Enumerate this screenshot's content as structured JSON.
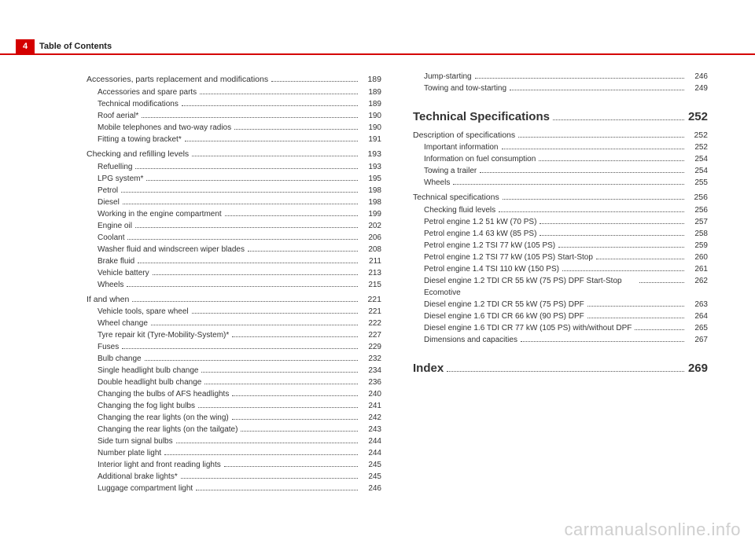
{
  "header": {
    "page_number": "4",
    "section": "Table of Contents"
  },
  "watermark": "carmanualsonline.info",
  "columns": [
    [
      {
        "type": "group",
        "label": "Accessories, parts replacement and modifications",
        "page": "189",
        "wrap": true
      },
      {
        "type": "sub",
        "label": "Accessories and spare parts",
        "page": "189"
      },
      {
        "type": "sub",
        "label": "Technical modifications",
        "page": "189"
      },
      {
        "type": "sub",
        "label": "Roof aerial*",
        "page": "190"
      },
      {
        "type": "sub",
        "label": "Mobile telephones and two-way radios",
        "page": "190"
      },
      {
        "type": "sub",
        "label": "Fitting a towing bracket*",
        "page": "191"
      },
      {
        "type": "group",
        "label": "Checking and refilling levels",
        "page": "193"
      },
      {
        "type": "sub",
        "label": "Refuelling",
        "page": "193"
      },
      {
        "type": "sub",
        "label": "LPG system*",
        "page": "195"
      },
      {
        "type": "sub",
        "label": "Petrol",
        "page": "198"
      },
      {
        "type": "sub",
        "label": "Diesel",
        "page": "198"
      },
      {
        "type": "sub",
        "label": "Working in the engine compartment",
        "page": "199"
      },
      {
        "type": "sub",
        "label": "Engine oil",
        "page": "202"
      },
      {
        "type": "sub",
        "label": "Coolant",
        "page": "206"
      },
      {
        "type": "sub",
        "label": "Washer fluid and windscreen wiper blades",
        "page": "208"
      },
      {
        "type": "sub",
        "label": "Brake fluid",
        "page": "211"
      },
      {
        "type": "sub",
        "label": "Vehicle battery",
        "page": "213"
      },
      {
        "type": "sub",
        "label": "Wheels",
        "page": "215"
      },
      {
        "type": "group",
        "label": "If and when",
        "page": "221"
      },
      {
        "type": "sub",
        "label": "Vehicle tools, spare wheel",
        "page": "221"
      },
      {
        "type": "sub",
        "label": "Wheel change",
        "page": "222"
      },
      {
        "type": "sub",
        "label": "Tyre repair kit (Tyre-Mobility-System)*",
        "page": "227"
      },
      {
        "type": "sub",
        "label": "Fuses",
        "page": "229"
      },
      {
        "type": "sub",
        "label": "Bulb change",
        "page": "232"
      },
      {
        "type": "sub",
        "label": "Single headlight bulb change",
        "page": "234"
      },
      {
        "type": "sub",
        "label": "Double headlight bulb change",
        "page": "236"
      },
      {
        "type": "sub",
        "label": "Changing the bulbs of AFS headlights",
        "page": "240"
      },
      {
        "type": "sub",
        "label": "Changing the fog light bulbs",
        "page": "241"
      },
      {
        "type": "sub",
        "label": "Changing the rear lights (on the wing)",
        "page": "242"
      },
      {
        "type": "sub",
        "label": "Changing the rear lights (on the tailgate)",
        "page": "243"
      },
      {
        "type": "sub",
        "label": "Side turn signal bulbs",
        "page": "244"
      },
      {
        "type": "sub",
        "label": "Number plate light",
        "page": "244"
      },
      {
        "type": "sub",
        "label": "Interior light and front reading lights",
        "page": "245"
      },
      {
        "type": "sub",
        "label": "Additional brake lights*",
        "page": "245"
      },
      {
        "type": "sub",
        "label": "Luggage compartment light",
        "page": "246"
      }
    ],
    [
      {
        "type": "sub",
        "label": "Jump-starting",
        "page": "246"
      },
      {
        "type": "sub",
        "label": "Towing and tow-starting",
        "page": "249"
      },
      {
        "type": "heading",
        "label": "Technical Specifications",
        "page": "252"
      },
      {
        "type": "group",
        "label": "Description of specifications",
        "page": "252"
      },
      {
        "type": "sub",
        "label": "Important information",
        "page": "252"
      },
      {
        "type": "sub",
        "label": "Information on fuel consumption",
        "page": "254"
      },
      {
        "type": "sub",
        "label": "Towing a trailer",
        "page": "254"
      },
      {
        "type": "sub",
        "label": "Wheels",
        "page": "255"
      },
      {
        "type": "group",
        "label": "Technical specifications",
        "page": "256"
      },
      {
        "type": "sub",
        "label": "Checking fluid levels",
        "page": "256"
      },
      {
        "type": "sub",
        "label": "Petrol engine 1.2 51 kW (70 PS)",
        "page": "257"
      },
      {
        "type": "sub",
        "label": "Petrol engine 1.4 63 kW (85 PS)",
        "page": "258"
      },
      {
        "type": "sub",
        "label": "Petrol engine 1.2 TSI 77 kW (105 PS)",
        "page": "259"
      },
      {
        "type": "sub",
        "label": "Petrol engine 1.2 TSI 77 kW (105 PS) Start-Stop",
        "page": "260"
      },
      {
        "type": "sub",
        "label": "Petrol engine 1.4 TSI 110 kW (150 PS)",
        "page": "261"
      },
      {
        "type": "sub",
        "label": "Diesel engine 1.2 TDI CR 55 kW (75 PS) DPF Start-Stop Ecomotive",
        "page": "262",
        "wrap": true
      },
      {
        "type": "sub",
        "label": "Diesel engine 1.2 TDI CR 55 kW (75 PS) DPF",
        "page": "263"
      },
      {
        "type": "sub",
        "label": "Diesel engine 1.6 TDI CR 66 kW (90 PS) DPF",
        "page": "264"
      },
      {
        "type": "sub",
        "label": "Diesel engine 1.6 TDI CR 77 kW (105 PS) with/without DPF",
        "page": "265",
        "wrap": true
      },
      {
        "type": "sub",
        "label": "Dimensions and capacities",
        "page": "267"
      },
      {
        "type": "heading",
        "label": "Index",
        "page": "269"
      }
    ]
  ]
}
